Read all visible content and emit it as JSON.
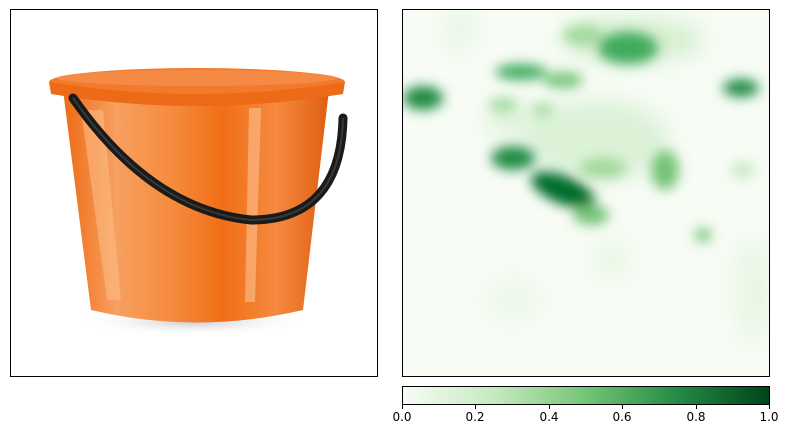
{
  "image_panel": {
    "subject": "orange plastic bucket with black handle"
  },
  "chart_data": {
    "type": "heatmap",
    "colormap": "Greens",
    "colors": {
      "low": "#f7fcf5",
      "mid": "#74c476",
      "high": "#00441b"
    },
    "vmin": 0.0,
    "vmax": 1.0,
    "colorbar_ticks": [
      "0.0",
      "0.2",
      "0.4",
      "0.6",
      "0.8",
      "1.0"
    ],
    "hotspots": [
      {
        "region": "top-center",
        "intensity": 0.75
      },
      {
        "region": "upper-left-center",
        "intensity": 0.7
      },
      {
        "region": "left-edge",
        "intensity": 0.8
      },
      {
        "region": "right-edge",
        "intensity": 0.75
      },
      {
        "region": "center-left diagonal",
        "intensity": 0.95
      },
      {
        "region": "center-right",
        "intensity": 0.45
      }
    ]
  }
}
